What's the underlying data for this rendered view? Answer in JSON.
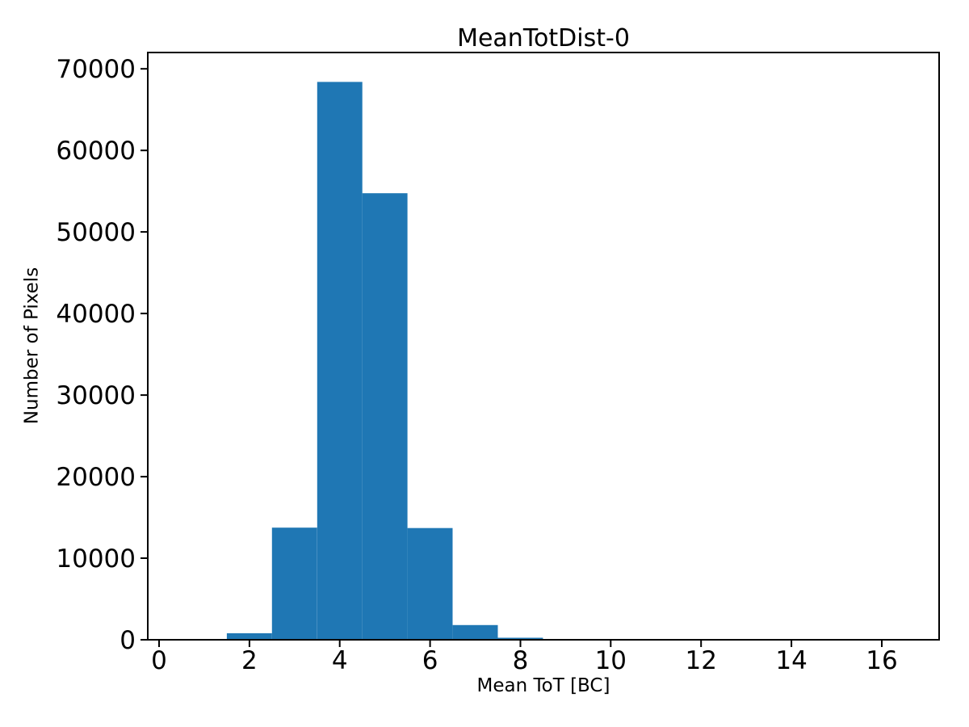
{
  "chart_data": {
    "type": "bar",
    "subtype": "histogram",
    "title": "MeanTotDist-0",
    "xlabel": "Mean ToT [BC]",
    "ylabel": "Number of Pixels",
    "bin_edges": [
      1.5,
      2.5,
      3.5,
      4.5,
      5.5,
      6.5,
      7.5,
      8.5
    ],
    "values": [
      800,
      13750,
      68400,
      54750,
      13700,
      1800,
      250
    ],
    "xticks": [
      0,
      2,
      4,
      6,
      8,
      10,
      12,
      14,
      16
    ],
    "yticks": [
      0,
      10000,
      20000,
      30000,
      40000,
      50000,
      60000,
      70000
    ],
    "xlim": [
      -0.25,
      17.27
    ],
    "ylim": [
      0,
      72000
    ],
    "grid": false,
    "legend": null,
    "bar_color": "#1f77b4",
    "axis_color": "#000000",
    "text_color": "#000000",
    "background_color": "#ffffff"
  }
}
